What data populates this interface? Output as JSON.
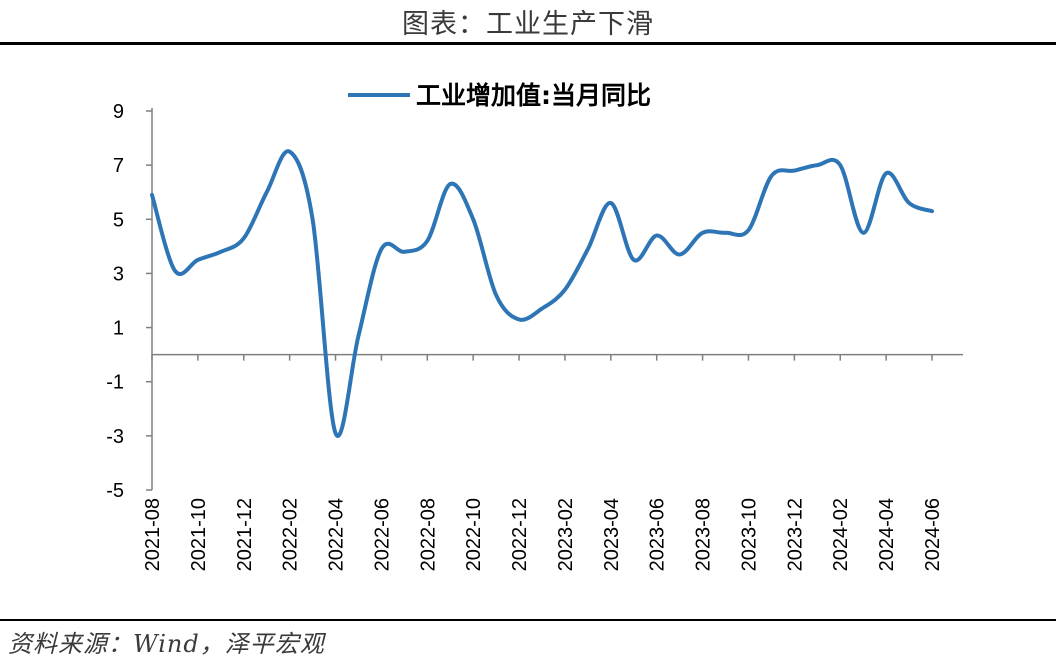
{
  "figure": {
    "title": "图表：工业生产下滑",
    "source": "资料来源：Wind，泽平宏观"
  },
  "chart_data": {
    "type": "line",
    "title": "",
    "xlabel": "",
    "ylabel": "",
    "ylim": [
      -5,
      9
    ],
    "yticks": [
      9,
      7,
      5,
      3,
      1,
      -1,
      -3,
      -5
    ],
    "grid": false,
    "legend_position": "top-center",
    "x_tick_labels": [
      "2021-08",
      "2021-10",
      "2021-12",
      "2022-02",
      "2022-04",
      "2022-06",
      "2022-08",
      "2022-10",
      "2022-12",
      "2023-02",
      "2023-04",
      "2023-06",
      "2023-08",
      "2023-10",
      "2023-12",
      "2024-02",
      "2024-04",
      "2024-06"
    ],
    "x": [
      "2021-08",
      "2021-09",
      "2021-10",
      "2021-11",
      "2021-12",
      "2022-01",
      "2022-02",
      "2022-03",
      "2022-04",
      "2022-05",
      "2022-06",
      "2022-07",
      "2022-08",
      "2022-09",
      "2022-10",
      "2022-11",
      "2022-12",
      "2023-01",
      "2023-02",
      "2023-03",
      "2023-04",
      "2023-05",
      "2023-06",
      "2023-07",
      "2023-08",
      "2023-09",
      "2023-10",
      "2023-11",
      "2023-12",
      "2024-01",
      "2024-02",
      "2024-03",
      "2024-04",
      "2024-05",
      "2024-06"
    ],
    "series": [
      {
        "name": "工业增加值:当月同比",
        "color": "#2e75b6",
        "values": [
          5.9,
          3.1,
          3.5,
          3.8,
          4.3,
          6.0,
          7.5,
          5.0,
          -2.9,
          0.7,
          3.9,
          3.8,
          4.2,
          6.3,
          5.0,
          2.2,
          1.3,
          1.7,
          2.4,
          3.9,
          5.6,
          3.5,
          4.4,
          3.7,
          4.5,
          4.5,
          4.6,
          6.6,
          6.8,
          7.0,
          7.0,
          4.5,
          6.7,
          5.6,
          5.3
        ]
      }
    ]
  }
}
